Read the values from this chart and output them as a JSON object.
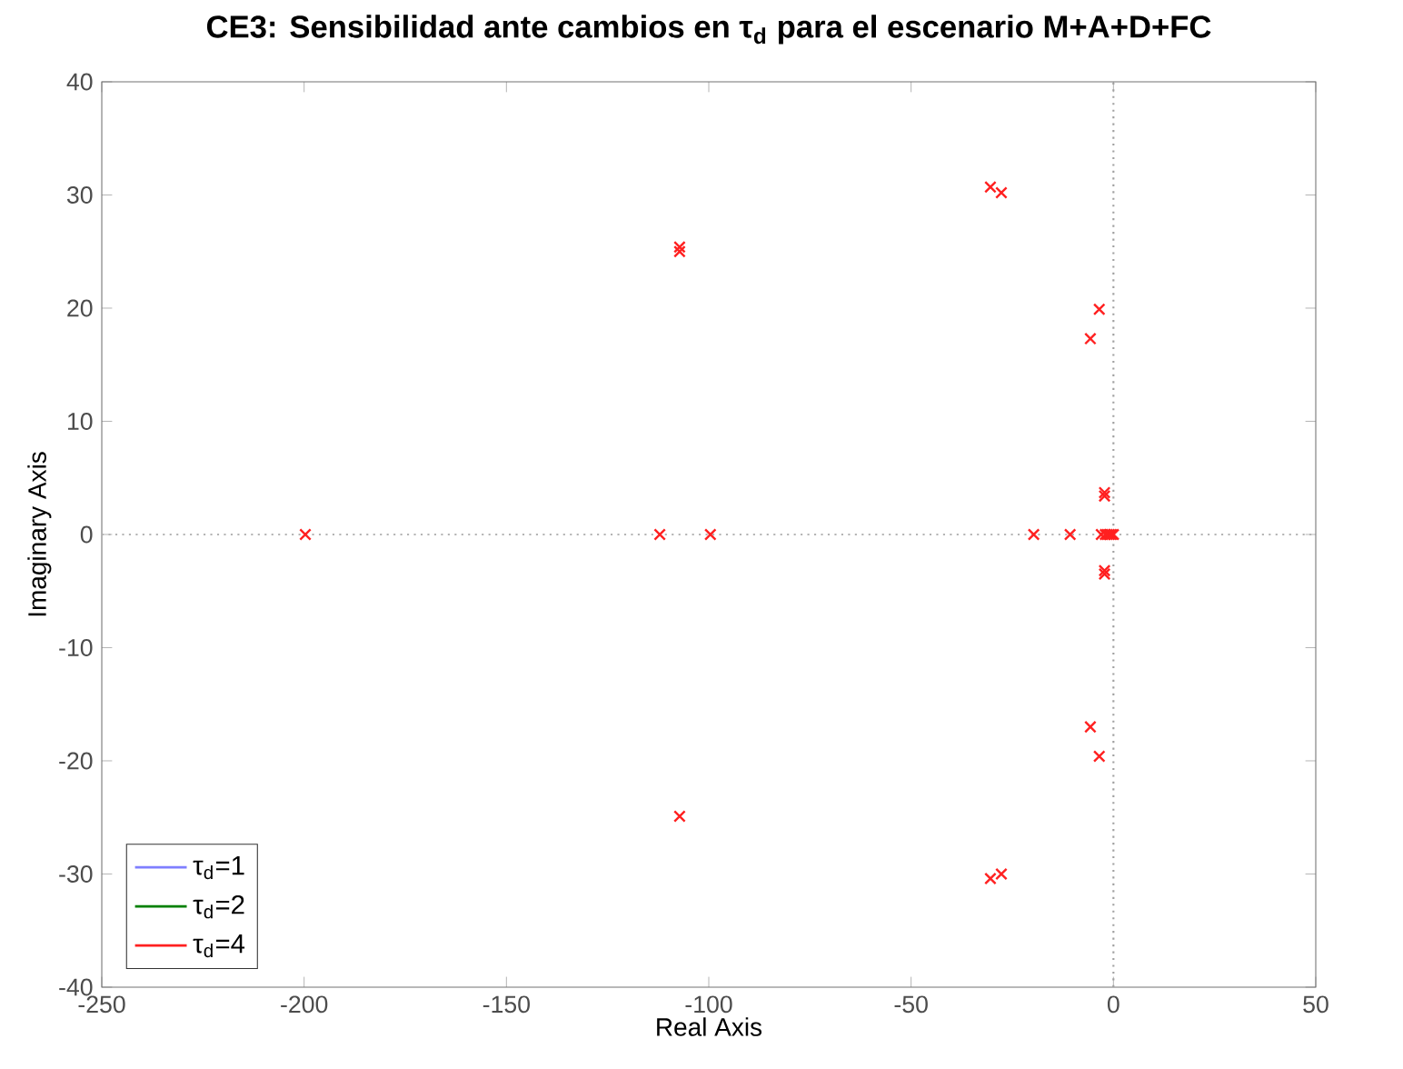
{
  "chart_data": {
    "type": "scatter",
    "title": "CE3: Sensibilidad ante cambios en τ$_{d}$ para el escenario M+A+D+FC",
    "xlabel": "Real Axis",
    "ylabel": "Imaginary Axis",
    "xlim": [
      -250,
      50
    ],
    "ylim": [
      -40,
      40
    ],
    "xticks": [
      -250,
      -200,
      -150,
      -100,
      -50,
      0,
      50
    ],
    "yticks": [
      -40,
      -30,
      -20,
      -10,
      0,
      10,
      20,
      30,
      40
    ],
    "marker": "cross",
    "legend": "bottom left",
    "grid": false,
    "ref_lines": [
      {
        "axis": "x",
        "value": 0,
        "color": "#a0a0a0",
        "line_style": "dotted"
      },
      {
        "axis": "y",
        "value": 0,
        "color": "#b4b4b4",
        "line_style": "dotted"
      }
    ],
    "series": [
      {
        "name": "τ$_{d}$=1",
        "color": "#7f7fff"
      },
      {
        "name": "τ$_{d}$=2",
        "color": "#008000"
      },
      {
        "name": "τ$_{d}$=4",
        "color": "#ff2020",
        "x": [
          -30.4,
          -27.7,
          -107.2,
          -107.2,
          -3.5,
          -5.7,
          -199.7,
          -112.1,
          -99.6,
          -19.7,
          -10.7,
          -3,
          -2,
          -1.5,
          -1,
          -0.5,
          0,
          -2.2,
          -2.2,
          -2.2,
          -2.2,
          -5.7,
          -3.5,
          -107.2,
          -30.4,
          -27.7
        ],
        "values": [
          30.7,
          30.2,
          25.4,
          25,
          19.9,
          17.3,
          0,
          0,
          0,
          0,
          0,
          0,
          0,
          0,
          0,
          0,
          0,
          3.7,
          3.4,
          -3.2,
          -3.5,
          -17,
          -19.6,
          -24.9,
          -30.4,
          -30
        ]
      }
    ]
  }
}
